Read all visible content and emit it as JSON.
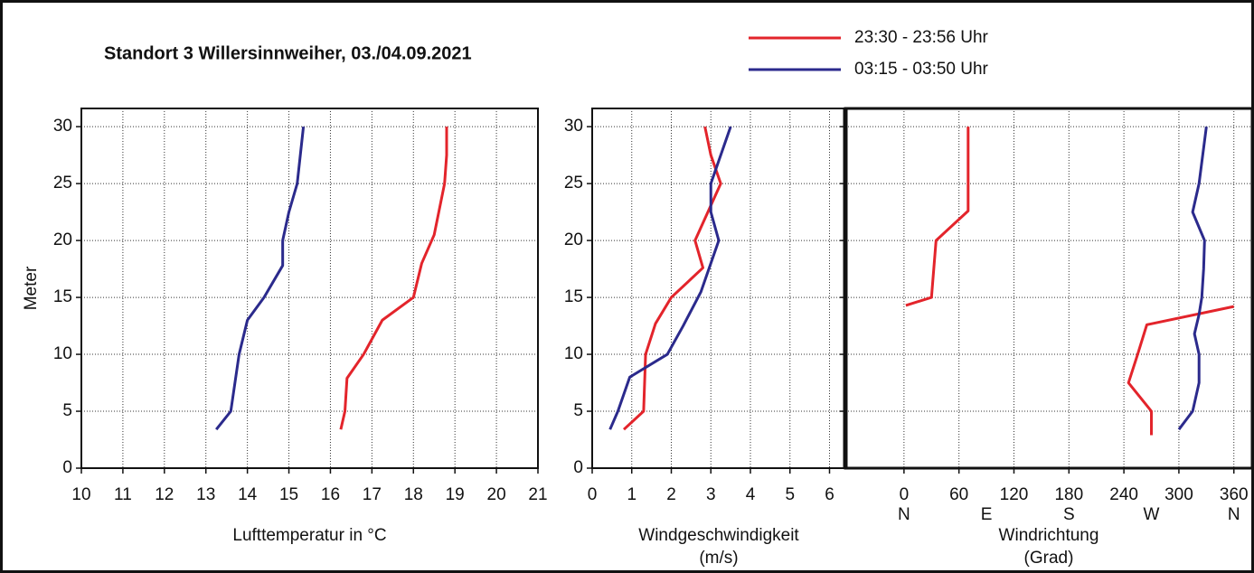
{
  "title": "Standort 3 Willersinnweiher, 03./04.09.2021",
  "chart_data": [
    {
      "type": "line",
      "ylabel": "Meter",
      "xlabel": "Lufttemperatur in °C",
      "xlim": [
        10,
        21
      ],
      "xticks": [
        10,
        11,
        12,
        13,
        14,
        15,
        16,
        17,
        18,
        19,
        20,
        21
      ],
      "ylim": [
        0,
        31.6
      ],
      "yticks": [
        0,
        5,
        10,
        15,
        20,
        25,
        30
      ],
      "show_ytick_labels": true,
      "grid": true,
      "series": [
        {
          "name": "23:30 - 23:56 Uhr",
          "color": "#e3242b",
          "x": [
            16.25,
            16.35,
            16.4,
            16.8,
            17.25,
            18.0,
            18.2,
            18.5,
            18.75,
            18.8,
            18.8
          ],
          "y": [
            3.4,
            5,
            7.9,
            10,
            13,
            15,
            18,
            20.5,
            25,
            27.5,
            30
          ]
        },
        {
          "name": "03:15 - 03:50 Uhr",
          "color": "#2b2a8c",
          "x": [
            13.25,
            13.6,
            13.8,
            14.0,
            14.4,
            14.85,
            14.85,
            15.0,
            15.2,
            15.35
          ],
          "y": [
            3.4,
            5,
            10,
            13,
            15,
            17.8,
            20,
            22.5,
            25,
            30
          ]
        }
      ]
    },
    {
      "type": "line",
      "xlabel": [
        "Windgeschwindigkeit",
        "(m/s)"
      ],
      "xlim": [
        0,
        6.4
      ],
      "xticks": [
        0,
        1,
        2,
        3,
        4,
        5,
        6
      ],
      "ylim": [
        0,
        31.6
      ],
      "yticks": [
        0,
        5,
        10,
        15,
        20,
        25,
        30
      ],
      "show_ytick_labels": true,
      "grid": true,
      "series": [
        {
          "color": "#e3242b",
          "x": [
            0.8,
            1.3,
            1.35,
            1.6,
            2.0,
            2.8,
            2.6,
            3.25,
            3.0,
            2.85
          ],
          "y": [
            3.4,
            5,
            10,
            12.7,
            15,
            17.6,
            20,
            25,
            27.5,
            30
          ]
        },
        {
          "color": "#2b2a8c",
          "x": [
            0.45,
            0.65,
            0.95,
            1.9,
            2.3,
            2.75,
            3.2,
            3.0,
            3.0,
            3.5
          ],
          "y": [
            3.4,
            5,
            8,
            10,
            12.5,
            15.5,
            20,
            22.5,
            25,
            30
          ]
        }
      ]
    },
    {
      "type": "line",
      "xlabel": [
        "Windrichtung",
        "(Grad)"
      ],
      "xlim": [
        -64,
        380
      ],
      "xticks": [
        0,
        60,
        120,
        180,
        240,
        300,
        360
      ],
      "compass_ticks": [
        {
          "value": 0,
          "label": "N"
        },
        {
          "value": 90,
          "label": "E"
        },
        {
          "value": 180,
          "label": "S"
        },
        {
          "value": 270,
          "label": "W"
        },
        {
          "value": 360,
          "label": "N"
        }
      ],
      "ylim": [
        0,
        31.6
      ],
      "yticks": [
        0,
        5,
        10,
        15,
        20,
        25,
        30
      ],
      "show_ytick_labels": false,
      "grid": true,
      "series": [
        {
          "color": "#e3242b",
          "x": [
            270,
            270,
            245,
            255,
            265,
            360,
            null,
            2,
            30,
            35,
            70,
            70
          ],
          "y": [
            2.9,
            5,
            7.5,
            10,
            12.6,
            14.2,
            null,
            14.3,
            15,
            20,
            22.6,
            30
          ]
        },
        {
          "color": "#2b2a8c",
          "x": [
            300,
            315,
            322,
            322,
            317,
            322,
            325,
            327,
            328,
            315,
            322,
            330
          ],
          "y": [
            3.4,
            5,
            7.5,
            10,
            11.8,
            13.5,
            15,
            17.5,
            20,
            22.5,
            25,
            30
          ]
        }
      ]
    }
  ]
}
